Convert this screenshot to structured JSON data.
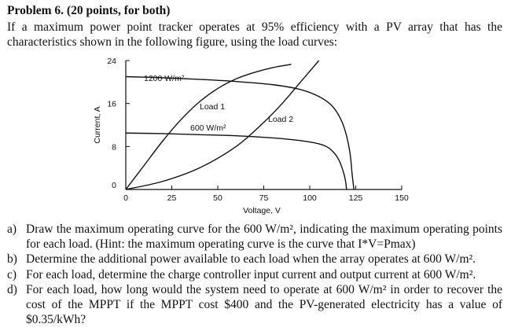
{
  "problem": {
    "title": "Problem 6. (20 points, for both)",
    "intro": "If a maximum power point tracker operates at 95% efficiency with a PV array that has the characteristics shown in the following figure, using the load curves:"
  },
  "chart_data": {
    "type": "line",
    "xlabel": "Voltage, V",
    "ylabel": "Current, A",
    "xlim": [
      0,
      150
    ],
    "ylim": [
      0,
      24
    ],
    "x_ticks": [
      "0",
      "25",
      "50",
      "75",
      "100",
      "125",
      "150"
    ],
    "y_ticks": [
      "0",
      "8",
      "16",
      "24"
    ],
    "annotations": [
      "1200 W/m²",
      "600 W/m²",
      "Load 1",
      "Load 2"
    ],
    "series": [
      {
        "name": "1200 W/m²",
        "x": [
          0,
          20,
          40,
          60,
          80,
          95,
          105,
          112,
          117,
          120,
          122,
          123,
          124
        ],
        "y": [
          21,
          20.8,
          20.5,
          20.1,
          19.5,
          18.6,
          17.3,
          15.6,
          13,
          10,
          6.5,
          3,
          0
        ]
      },
      {
        "name": "600 W/m²",
        "x": [
          0,
          20,
          40,
          60,
          80,
          95,
          105,
          110,
          114,
          116.5,
          118.5,
          119.5,
          120
        ],
        "y": [
          10.5,
          10.4,
          10.2,
          10,
          9.6,
          9.1,
          8.5,
          7.8,
          6.5,
          5,
          3,
          1.5,
          0
        ]
      },
      {
        "name": "Load 1",
        "x": [
          0,
          10,
          20,
          30,
          40,
          50,
          60,
          70,
          80,
          90
        ],
        "y": [
          0,
          4.5,
          9,
          13,
          16.3,
          18.8,
          20.6,
          21.8,
          22.7,
          23.3
        ]
      },
      {
        "name": "Load 2",
        "x": [
          0,
          20,
          40,
          60,
          75,
          85,
          95,
          105
        ],
        "y": [
          0,
          1.5,
          4,
          8,
          12.5,
          16,
          20,
          24
        ]
      }
    ]
  },
  "questions": [
    {
      "label": "a)",
      "text": "Draw the maximum operating curve for the 600 W/m², indicating the maximum operating points for each load. (Hint: the maximum operating curve is the curve that I*V=Pmax)"
    },
    {
      "label": "b)",
      "text": "Determine the additional power available to each load when the array operates at 600 W/m²."
    },
    {
      "label": "c)",
      "text": "For each load, determine the charge controller input current and output current at 600 W/m²."
    },
    {
      "label": "d)",
      "text": "For each load, how long would the system need to operate at 600 W/m² in order to recover the cost of the MPPT if the MPPT cost $400 and the PV-generated electricity has a value of $0.35/kWh?"
    }
  ]
}
